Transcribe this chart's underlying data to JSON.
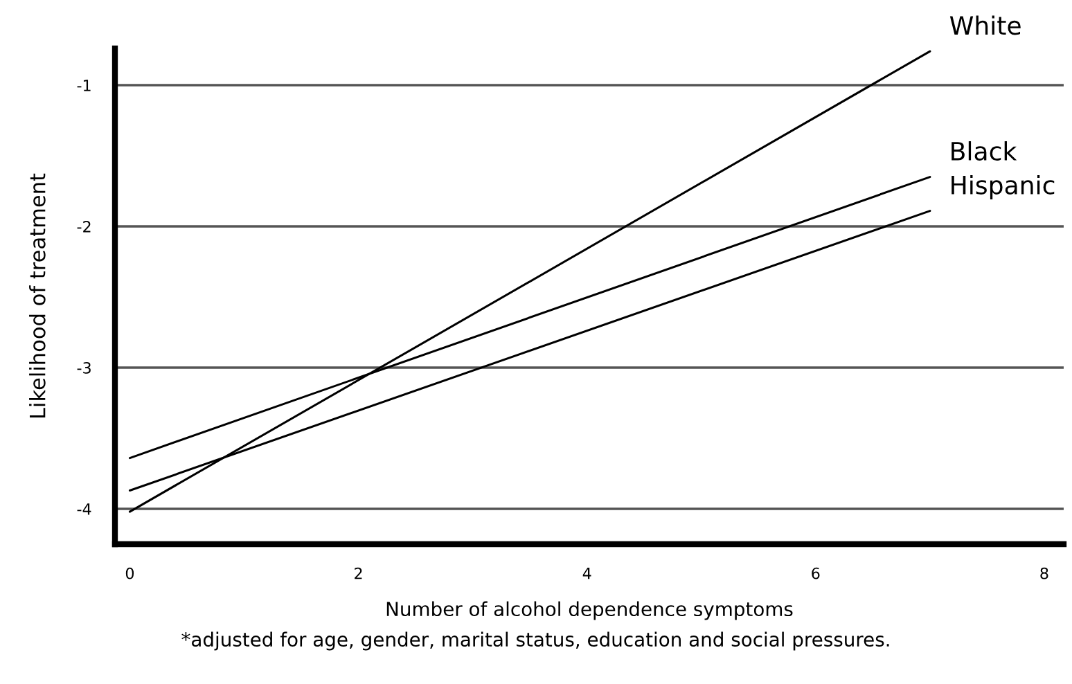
{
  "chart_data": {
    "type": "line",
    "xlabel": "Number of alcohol dependence symptoms",
    "ylabel": "Likelihood of treatment",
    "annotations": [
      "*adjusted for age, gender, marital status, education and social pressures."
    ],
    "series": [
      {
        "name": "White",
        "color": "#000000",
        "values": [
          -4.02,
          -0.76
        ]
      },
      {
        "name": "Black",
        "color": "#000000",
        "values": [
          -3.64,
          -1.65
        ]
      },
      {
        "name": "Hispanic",
        "color": "#000000",
        "values": [
          -3.87,
          -1.89
        ]
      }
    ],
    "x": [
      0,
      7
    ],
    "xlim": [
      -0.13,
      8.17
    ],
    "ylim": [
      -4.25,
      -0.74
    ],
    "xticks": [
      0,
      2,
      4,
      6,
      8
    ],
    "yticks": [
      -1,
      -2,
      -3,
      -4
    ],
    "grid": "y",
    "legend": false,
    "marker": "none",
    "line_style": "solid"
  }
}
